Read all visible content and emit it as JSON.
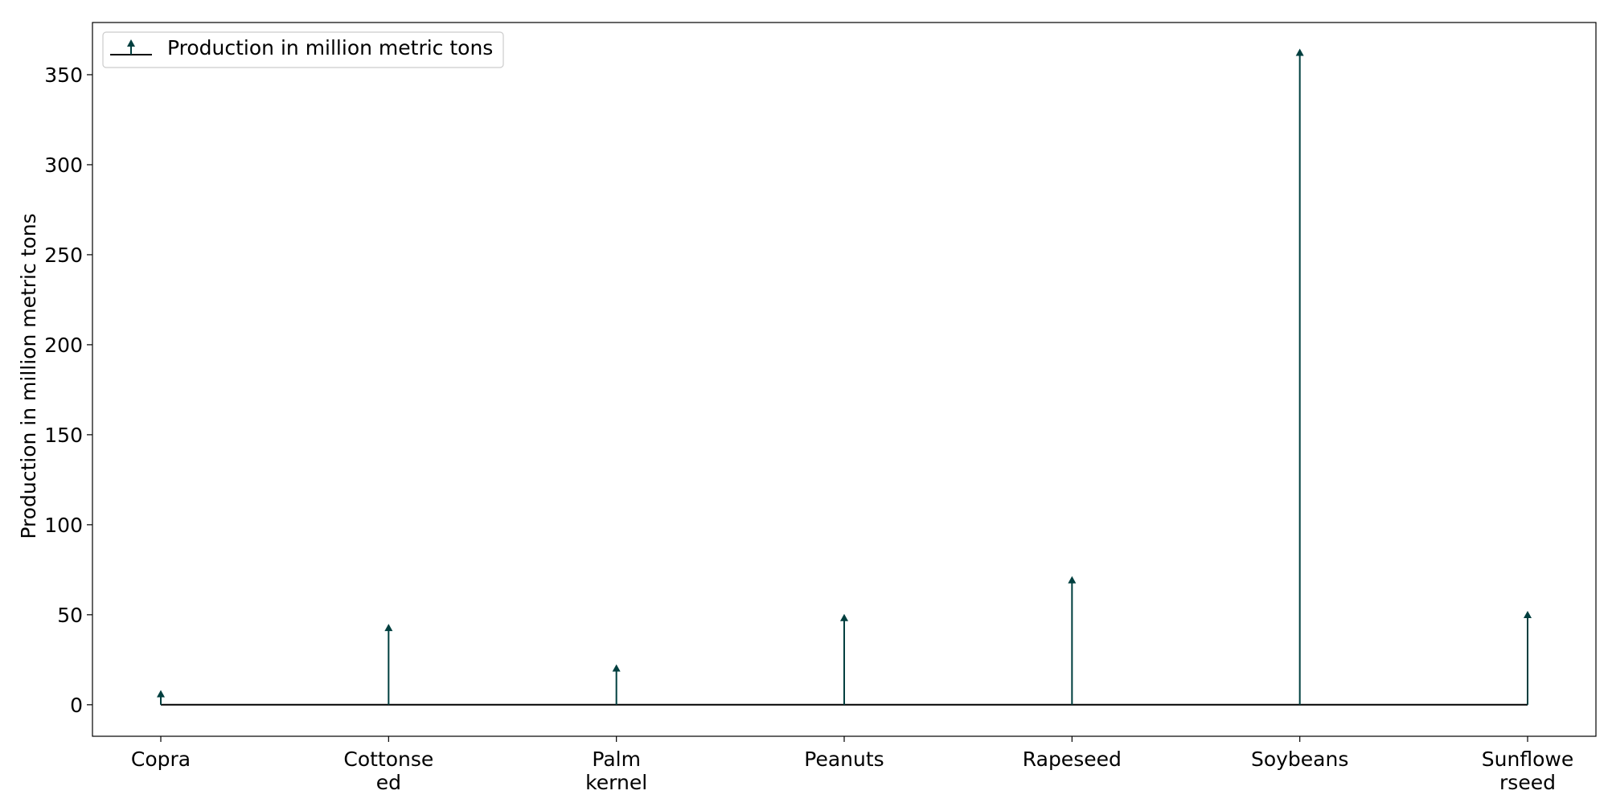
{
  "chart_data": {
    "type": "stem",
    "categories": [
      "Copra",
      "Cottonseed",
      "Palm kernel",
      "Peanuts",
      "Rapeseed",
      "Soybeans",
      "Sunflowerseed"
    ],
    "category_tick_lines": [
      [
        "Copra"
      ],
      [
        "Cottonse",
        "ed"
      ],
      [
        "Palm",
        "kernel"
      ],
      [
        "Peanuts"
      ],
      [
        "Rapeseed"
      ],
      [
        "Soybeans"
      ],
      [
        "Sunflowe",
        "rseed"
      ]
    ],
    "series": [
      {
        "name": "Production in million metric tons",
        "values": [
          5.5,
          42.3,
          19.8,
          47.8,
          68.8,
          361.8,
          49.5
        ]
      }
    ],
    "xlabel": "",
    "ylabel": "Production in million metric tons",
    "ylim": [
      -17.5,
      379
    ],
    "yticks": [
      0,
      50,
      100,
      150,
      200,
      250,
      300,
      350
    ],
    "grid": false,
    "legend_position": "top-left",
    "colors": {
      "stem": "#003f3f",
      "baseline": "#000000",
      "axes": "#000000",
      "legend_border": "#cccccc"
    }
  }
}
